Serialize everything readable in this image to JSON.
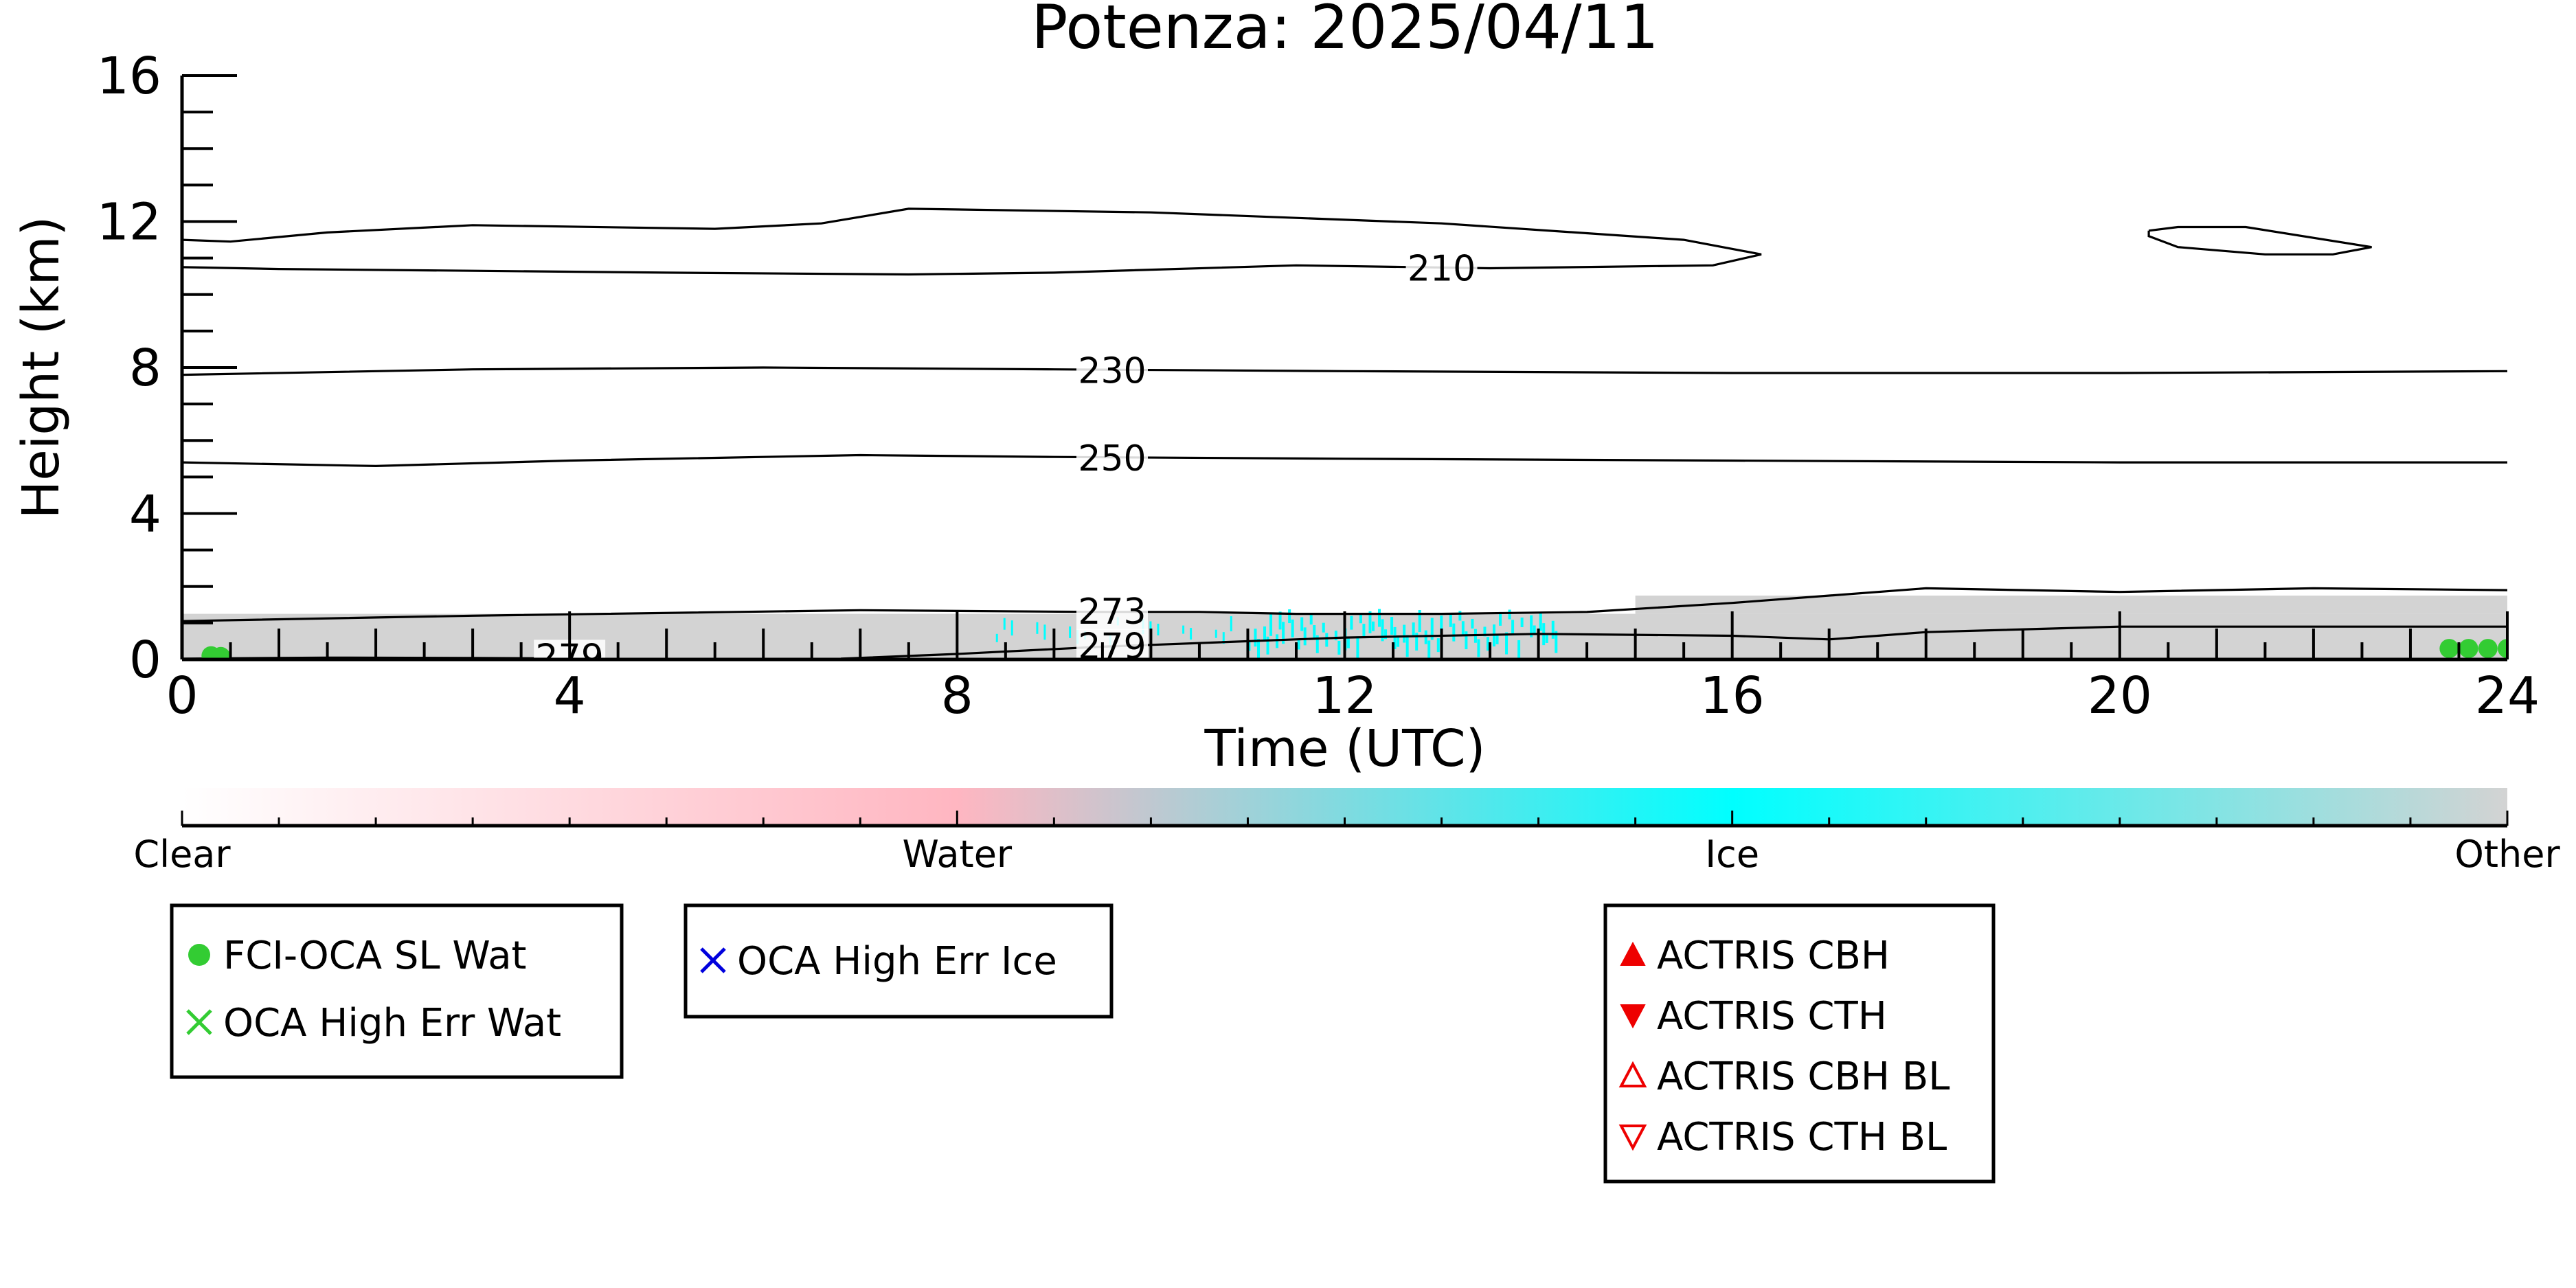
{
  "chart_data": {
    "type": "heatmap",
    "title": "Potenza: 2025/04/11",
    "xlabel": "Time (UTC)",
    "ylabel": "Height (km)",
    "xlim": [
      0,
      24
    ],
    "ylim": [
      0,
      16
    ],
    "x_ticks": [
      0,
      4,
      8,
      12,
      16,
      20,
      24
    ],
    "y_ticks": [
      0,
      4,
      8,
      12,
      16
    ],
    "colorbar": {
      "labels": [
        "Clear",
        "Water",
        "Ice",
        "Other"
      ],
      "positions": [
        0,
        8,
        16,
        24
      ],
      "colors": {
        "clear": "#ffffff",
        "water": "#ffb6c1",
        "ice": "#00ffff",
        "other": "#d3d3d3"
      }
    },
    "contours": [
      {
        "label": "210",
        "label_at": [
          13.0,
          10.7
        ],
        "segments": [
          [
            [
              0,
              11.5
            ],
            [
              0.5,
              11.45
            ],
            [
              1.5,
              11.7
            ],
            [
              3,
              11.9
            ],
            [
              5.5,
              11.8
            ],
            [
              6.6,
              11.95
            ],
            [
              7.5,
              12.35
            ],
            [
              10,
              12.25
            ],
            [
              13,
              11.95
            ],
            [
              15.5,
              11.5
            ],
            [
              16.3,
              11.1
            ],
            [
              15.8,
              10.8
            ],
            [
              13.5,
              10.72
            ],
            [
              11.5,
              10.8
            ],
            [
              9,
              10.6
            ],
            [
              7.5,
              10.55
            ],
            [
              5,
              10.6
            ],
            [
              3,
              10.65
            ],
            [
              1,
              10.7
            ],
            [
              0,
              10.75
            ]
          ],
          [
            [
              20.3,
              11.75
            ],
            [
              20.6,
              11.85
            ],
            [
              21.3,
              11.85
            ],
            [
              22.6,
              11.3
            ],
            [
              22.2,
              11.1
            ],
            [
              21.5,
              11.1
            ],
            [
              20.6,
              11.3
            ],
            [
              20.3,
              11.6
            ],
            [
              20.3,
              11.75
            ]
          ]
        ]
      },
      {
        "label": "230",
        "label_at": [
          9.6,
          7.9
        ],
        "segments": [
          [
            [
              0,
              7.8
            ],
            [
              3,
              7.95
            ],
            [
              6,
              8.0
            ],
            [
              9,
              7.95
            ],
            [
              12,
              7.9
            ],
            [
              16,
              7.85
            ],
            [
              20,
              7.85
            ],
            [
              24,
              7.9
            ]
          ]
        ]
      },
      {
        "label": "250",
        "label_at": [
          9.6,
          5.5
        ],
        "segments": [
          [
            [
              0,
              5.4
            ],
            [
              2,
              5.3
            ],
            [
              4,
              5.45
            ],
            [
              7,
              5.6
            ],
            [
              9,
              5.55
            ],
            [
              12,
              5.5
            ],
            [
              16,
              5.45
            ],
            [
              20,
              5.4
            ],
            [
              24,
              5.4
            ]
          ]
        ]
      },
      {
        "label": "273",
        "label_at": [
          9.6,
          1.3
        ],
        "segments": [
          [
            [
              0,
              1.05
            ],
            [
              3,
              1.2
            ],
            [
              7,
              1.35
            ],
            [
              9.5,
              1.3
            ],
            [
              10.5,
              1.3
            ],
            [
              11.5,
              1.25
            ],
            [
              13,
              1.25
            ],
            [
              14.5,
              1.3
            ],
            [
              16,
              1.55
            ],
            [
              18,
              1.95
            ],
            [
              20,
              1.85
            ],
            [
              22,
              1.95
            ],
            [
              24,
              1.9
            ]
          ]
        ]
      },
      {
        "label": "279",
        "label_at": [
          9.6,
          0.35
        ],
        "segments": [
          [
            [
              6.8,
              0.02
            ],
            [
              8,
              0.15
            ],
            [
              9.5,
              0.35
            ],
            [
              10,
              0.4
            ],
            [
              12,
              0.6
            ],
            [
              14,
              0.7
            ],
            [
              16,
              0.65
            ],
            [
              17,
              0.55
            ],
            [
              18,
              0.75
            ],
            [
              20,
              0.9
            ],
            [
              24,
              0.9
            ]
          ]
        ]
      },
      {
        "label": "279",
        "label_at": [
          4.0,
          0.05
        ],
        "segments": [
          [
            [
              0,
              0.02
            ],
            [
              1.5,
              0.05
            ],
            [
              3,
              0.04
            ],
            [
              3.8,
              0.03
            ]
          ]
        ]
      }
    ],
    "cloud_mask": [
      {
        "class": "other",
        "x0": 0,
        "x1": 24,
        "y0": 0,
        "y1": 1.25
      },
      {
        "class": "other",
        "x0": 15,
        "x1": 24,
        "y0": 1.25,
        "y1": 1.75
      }
    ],
    "legends": [
      {
        "entries": [
          {
            "label": "FCI-OCA SL Wat",
            "marker": "circle",
            "color": "#33cc33"
          },
          {
            "label": "OCA High Err Wat",
            "marker": "x",
            "color": "#33cc33"
          }
        ]
      },
      {
        "entries": [
          {
            "label": "OCA High Err Ice",
            "marker": "x",
            "color": "#0000dd"
          }
        ]
      },
      {
        "entries": [
          {
            "label": "ACTRIS CBH",
            "marker": "triangle-up",
            "color": "#ee0000"
          },
          {
            "label": "ACTRIS CTH",
            "marker": "triangle-down",
            "color": "#ee0000"
          },
          {
            "label": "ACTRIS CBH BL",
            "marker": "triangle-up-open",
            "color": "#ee0000"
          },
          {
            "label": "ACTRIS CTH BL",
            "marker": "triangle-down-open",
            "color": "#ee0000"
          }
        ]
      }
    ],
    "series": [
      {
        "marker": "circle",
        "color": "#33cc33",
        "x": [
          0.3,
          0.4,
          23.4,
          23.6,
          23.8,
          24.0
        ],
        "y": [
          0.1,
          0.08,
          0.3,
          0.3,
          0.3,
          0.3
        ]
      }
    ]
  }
}
